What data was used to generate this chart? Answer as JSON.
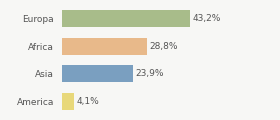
{
  "categories": [
    "Europa",
    "Africa",
    "Asia",
    "America"
  ],
  "values": [
    43.2,
    28.8,
    23.9,
    4.1
  ],
  "labels": [
    "43,2%",
    "28,8%",
    "23,9%",
    "4,1%"
  ],
  "bar_colors": [
    "#a8bc8a",
    "#e8b98a",
    "#7a9fc0",
    "#e8d87a"
  ],
  "background_color": "#f7f7f5",
  "xlim": [
    0,
    62
  ],
  "bar_height": 0.62,
  "label_fontsize": 6.5,
  "category_fontsize": 6.5,
  "figsize": [
    2.8,
    1.2
  ],
  "dpi": 100
}
